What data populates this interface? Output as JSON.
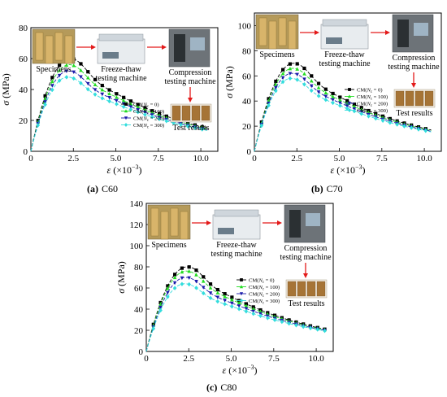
{
  "chart_data": [
    {
      "type": "line",
      "caption_letter": "(a)",
      "caption_text": "C60",
      "xlabel_symbol": "ε",
      "xlabel_unit": "(×10",
      "xlabel_exp": "−3",
      "xlabel_close": ")",
      "ylabel_symbol": "σ",
      "ylabel_unit": "(MPa)",
      "xlim": [
        0,
        11
      ],
      "ylim": [
        0,
        80
      ],
      "xticks": [
        0,
        2.5,
        5.0,
        7.5,
        10.0
      ],
      "xtick_labels": [
        "0",
        "2.5",
        "5.0",
        "7.5",
        "10.0"
      ],
      "yticks": [
        0,
        20,
        40,
        60,
        80
      ],
      "ytick_labels": [
        "0",
        "20",
        "40",
        "60",
        "80"
      ],
      "peaks": [
        60,
        56,
        52,
        48
      ],
      "peak_strain": 2.3,
      "end_values": [
        15,
        14.5,
        14,
        13.5
      ],
      "end_strain": 10.4,
      "series": [
        {
          "name_prefix": "CM(",
          "name_var": "N",
          "name_sub": "c",
          "name_suffix": " = 0)",
          "color": "#000000",
          "marker": "square"
        },
        {
          "name_prefix": "CM(",
          "name_var": "N",
          "name_sub": "c",
          "name_suffix": " = 100)",
          "color": "#22dd22",
          "marker": "triangle-up"
        },
        {
          "name_prefix": "CM(",
          "name_var": "N",
          "name_sub": "c",
          "name_suffix": " = 200)",
          "color": "#1a1aaa",
          "marker": "triangle-down"
        },
        {
          "name_prefix": "CM(",
          "name_var": "N",
          "name_sub": "c",
          "name_suffix": " = 300)",
          "color": "#33dddd",
          "marker": "diamond"
        }
      ],
      "inset": {
        "specimens": "Specimens",
        "freeze_thaw": "Freeze-thaw",
        "freeze_thaw_2": "testing machine",
        "compression": "Compression",
        "compression_2": "testing machine",
        "results": "Test results"
      }
    },
    {
      "type": "line",
      "caption_letter": "(b)",
      "caption_text": "C70",
      "xlabel_symbol": "ε",
      "xlabel_unit": "(×10",
      "xlabel_exp": "−3",
      "xlabel_close": ")",
      "ylabel_symbol": "σ",
      "ylabel_unit": "(MPa)",
      "xlim": [
        0,
        11
      ],
      "ylim": [
        0,
        110
      ],
      "xticks": [
        0,
        2.5,
        5.0,
        7.5,
        10.0
      ],
      "xtick_labels": [
        "0",
        "2.5",
        "5.0",
        "7.5",
        "10.0"
      ],
      "yticks": [
        0,
        20,
        40,
        60,
        80,
        100
      ],
      "ytick_labels": [
        "0",
        "20",
        "40",
        "60",
        "80",
        "100"
      ],
      "peaks": [
        70,
        66,
        62,
        58
      ],
      "peak_strain": 2.3,
      "end_values": [
        17,
        16.5,
        16,
        15.5
      ],
      "end_strain": 10.4,
      "series": [
        {
          "name_prefix": "CM(",
          "name_var": "N",
          "name_sub": "c",
          "name_suffix": " = 0)",
          "color": "#000000",
          "marker": "square"
        },
        {
          "name_prefix": "CM(",
          "name_var": "N",
          "name_sub": "c",
          "name_suffix": " = 100)",
          "color": "#22dd22",
          "marker": "triangle-up"
        },
        {
          "name_prefix": "CM(",
          "name_var": "N",
          "name_sub": "c",
          "name_suffix": " = 200)",
          "color": "#1a1aaa",
          "marker": "triangle-down"
        },
        {
          "name_prefix": "CM(",
          "name_var": "N",
          "name_sub": "c",
          "name_suffix": " = 300)",
          "color": "#33dddd",
          "marker": "diamond"
        }
      ],
      "inset": {
        "specimens": "Specimens",
        "freeze_thaw": "Freeze-thaw",
        "freeze_thaw_2": "testing machine",
        "compression": "Compression",
        "compression_2": "testing machine",
        "results": "Test results"
      }
    },
    {
      "type": "line",
      "caption_letter": "(c)",
      "caption_text": "C80",
      "xlabel_symbol": "ε",
      "xlabel_unit": "(×10",
      "xlabel_exp": "−3",
      "xlabel_close": ")",
      "ylabel_symbol": "σ",
      "ylabel_unit": "(MPa)",
      "xlim": [
        0,
        11
      ],
      "ylim": [
        0,
        140
      ],
      "xticks": [
        0,
        2.5,
        5.0,
        7.5,
        10.0
      ],
      "xtick_labels": [
        "0",
        "2.5",
        "5.0",
        "7.5",
        "10.0"
      ],
      "yticks": [
        0,
        20,
        40,
        60,
        80,
        100,
        120,
        140
      ],
      "ytick_labels": [
        "0",
        "20",
        "40",
        "60",
        "80",
        "100",
        "120",
        "140"
      ],
      "peaks": [
        80,
        76,
        70,
        64
      ],
      "peak_strain": 2.4,
      "end_values": [
        21,
        20.5,
        20,
        19.5
      ],
      "end_strain": 10.5,
      "series": [
        {
          "name_prefix": "CM(",
          "name_var": "N",
          "name_sub": "c",
          "name_suffix": " = 0)",
          "color": "#000000",
          "marker": "square"
        },
        {
          "name_prefix": "CM(",
          "name_var": "N",
          "name_sub": "c",
          "name_suffix": " = 100)",
          "color": "#22dd22",
          "marker": "triangle-up"
        },
        {
          "name_prefix": "CM(",
          "name_var": "N",
          "name_sub": "c",
          "name_suffix": " = 200)",
          "color": "#1a1aaa",
          "marker": "triangle-down"
        },
        {
          "name_prefix": "CM(",
          "name_var": "N",
          "name_sub": "c",
          "name_suffix": " = 300)",
          "color": "#33dddd",
          "marker": "diamond"
        }
      ],
      "inset": {
        "specimens": "Specimens",
        "freeze_thaw": "Freeze-thaw",
        "freeze_thaw_2": "testing machine",
        "compression": "Compression",
        "compression_2": "testing machine",
        "results": "Test results"
      }
    }
  ]
}
